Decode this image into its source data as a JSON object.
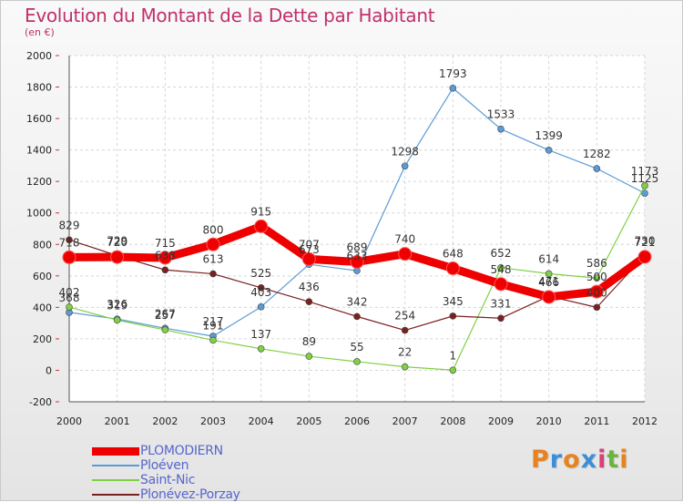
{
  "title": "Evolution du Montant de la Dette par Habitant",
  "subtitle": "(en €)",
  "logo": {
    "letters": [
      "P",
      "r",
      "o",
      "x",
      "i",
      "t",
      "i"
    ],
    "colors": [
      "#e8821e",
      "#3c8fd6",
      "#e8821e",
      "#3c8fd6",
      "#d9407a",
      "#6cb33f",
      "#e8821e"
    ]
  },
  "chart_data": {
    "type": "line",
    "x": [
      "2000",
      "2001",
      "2002",
      "2003",
      "2004",
      "2005",
      "2006",
      "2007",
      "2008",
      "2009",
      "2010",
      "2011",
      "2012"
    ],
    "ylim": [
      -200,
      2000
    ],
    "yticks": [
      -200,
      0,
      200,
      400,
      600,
      800,
      1000,
      1200,
      1400,
      1600,
      1800,
      2000
    ],
    "ytick_labels": [
      "-200",
      "0",
      "200",
      "400",
      "600",
      "800",
      "1000",
      "1200",
      "1400",
      "1600",
      "1800",
      "2000"
    ],
    "grid": true,
    "legend_position": "bottom-left",
    "series": [
      {
        "name": "PLOMODIERN",
        "color": "#ee0000",
        "width": 9,
        "marker": 7,
        "values": [
          718,
          720,
          715,
          800,
          915,
          707,
          689,
          740,
          648,
          548,
          466,
          500,
          721
        ]
      },
      {
        "name": "Ploéven",
        "color": "#5b9bd5",
        "width": 1.2,
        "marker": 3.5,
        "values": [
          368,
          326,
          267,
          217,
          403,
          673,
          633,
          1298,
          1793,
          1533,
          1399,
          1282,
          1125
        ]
      },
      {
        "name": "Saint-Nic",
        "color": "#7fd045",
        "width": 1.2,
        "marker": 3.5,
        "values": [
          402,
          319,
          257,
          191,
          137,
          89,
          55,
          22,
          1,
          652,
          614,
          586,
          1173
        ]
      },
      {
        "name": "Plonévez-Porzay",
        "color": "#7a2020",
        "width": 1.2,
        "marker": 3.5,
        "values": [
          829,
          729,
          638,
          613,
          525,
          436,
          342,
          254,
          345,
          331,
          471,
          400,
          730
        ]
      }
    ]
  }
}
